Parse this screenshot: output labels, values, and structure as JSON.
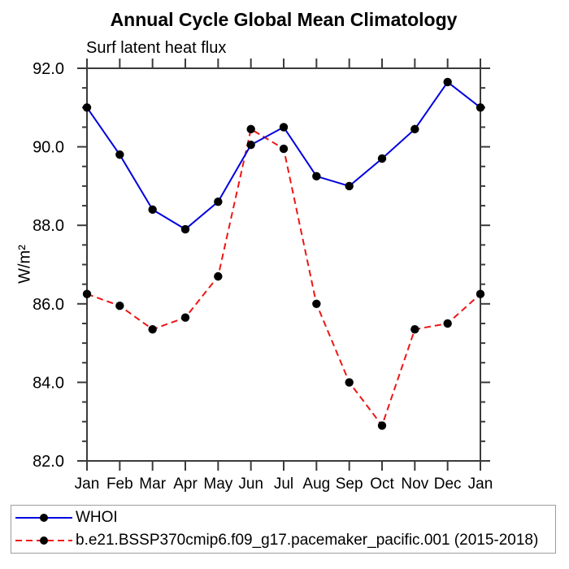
{
  "chart_data": {
    "type": "line",
    "title": "Annual Cycle Global Mean Climatology",
    "subtitle": "Surf latent heat flux",
    "ylabel": "W/m²",
    "xlabel": "",
    "categories": [
      "Jan",
      "Feb",
      "Mar",
      "Apr",
      "May",
      "Jun",
      "Jul",
      "Aug",
      "Sep",
      "Oct",
      "Nov",
      "Dec",
      "Jan"
    ],
    "ylim": [
      82.0,
      92.0
    ],
    "y_major_ticks": [
      82,
      84,
      86,
      88,
      90,
      92
    ],
    "y_tick_labels": [
      "82.0",
      "84.0",
      "86.0",
      "88.0",
      "90.0",
      "92.0"
    ],
    "y_minor_step": 0.5,
    "grid": false,
    "legend_position": "bottom-box",
    "axis_color": "#3b3b3b",
    "series": [
      {
        "name": "WHOI",
        "color": "#0000e0",
        "line_style": "solid",
        "marker": "filled-circle",
        "marker_color": "#000000",
        "values": [
          91.0,
          89.8,
          88.4,
          87.9,
          88.6,
          90.05,
          90.5,
          89.25,
          89.0,
          89.7,
          90.45,
          91.65,
          91.0
        ]
      },
      {
        "name": "b.e21.BSSP370cmip6.f09_g17.pacemaker_pacific.001 (2015-2018)",
        "color": "#ee1515",
        "line_style": "dashed",
        "marker": "filled-circle",
        "marker_color": "#000000",
        "values": [
          86.25,
          85.95,
          85.35,
          85.65,
          86.7,
          90.45,
          89.95,
          86.0,
          84.0,
          82.9,
          85.35,
          85.5,
          86.25
        ]
      }
    ]
  }
}
